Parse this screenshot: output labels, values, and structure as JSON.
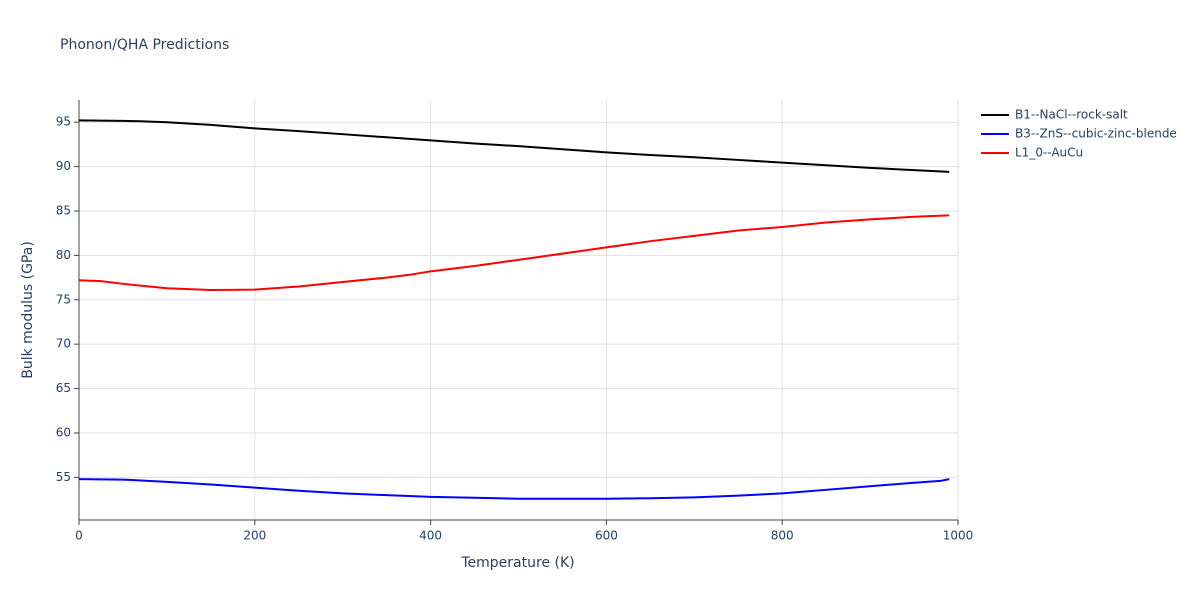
{
  "chart_data": {
    "type": "line",
    "title": "Phonon/QHA Predictions",
    "x_label": "Temperature (K)",
    "y_label": "Bulk modulus (GPa)",
    "xlim": [
      0,
      1000
    ],
    "xticks": [
      0,
      200,
      400,
      600,
      800,
      1000
    ],
    "ylim": [
      50.2,
      97.5
    ],
    "yticks": [
      55,
      60,
      65,
      70,
      75,
      80,
      85,
      90,
      95
    ],
    "grid": true,
    "legend": "right",
    "series": [
      {
        "name": "B1--NaCl--rock-salt",
        "color": "#000000",
        "x": [
          0,
          50,
          70,
          100,
          150,
          200,
          250,
          300,
          350,
          400,
          450,
          500,
          550,
          600,
          650,
          700,
          750,
          800,
          850,
          900,
          950,
          990
        ],
        "values": [
          95.2,
          95.15,
          95.1,
          95.0,
          94.7,
          94.3,
          94.0,
          93.65,
          93.3,
          92.95,
          92.6,
          92.3,
          91.95,
          91.6,
          91.3,
          91.05,
          90.75,
          90.45,
          90.15,
          89.85,
          89.6,
          89.4
        ]
      },
      {
        "name": "B3--ZnS--cubic-zinc-blende",
        "color": "#0000ff",
        "x": [
          0,
          50,
          100,
          150,
          200,
          250,
          300,
          350,
          400,
          450,
          500,
          550,
          600,
          650,
          700,
          750,
          800,
          850,
          900,
          950,
          980,
          990
        ],
        "values": [
          54.8,
          54.75,
          54.5,
          54.2,
          53.85,
          53.5,
          53.2,
          53.0,
          52.8,
          52.7,
          52.6,
          52.6,
          52.6,
          52.65,
          52.75,
          52.95,
          53.2,
          53.6,
          54.0,
          54.4,
          54.6,
          54.8
        ]
      },
      {
        "name": "L1_0--AuCu",
        "color": "#ff0000",
        "x": [
          0,
          25,
          50,
          100,
          150,
          200,
          250,
          300,
          350,
          375,
          400,
          450,
          500,
          550,
          600,
          650,
          700,
          750,
          800,
          850,
          900,
          950,
          990
        ],
        "values": [
          77.2,
          77.1,
          76.8,
          76.3,
          76.1,
          76.15,
          76.5,
          77.0,
          77.5,
          77.8,
          78.2,
          78.8,
          79.5,
          80.2,
          80.9,
          81.6,
          82.2,
          82.8,
          83.2,
          83.7,
          84.05,
          84.35,
          84.5
        ]
      }
    ]
  }
}
